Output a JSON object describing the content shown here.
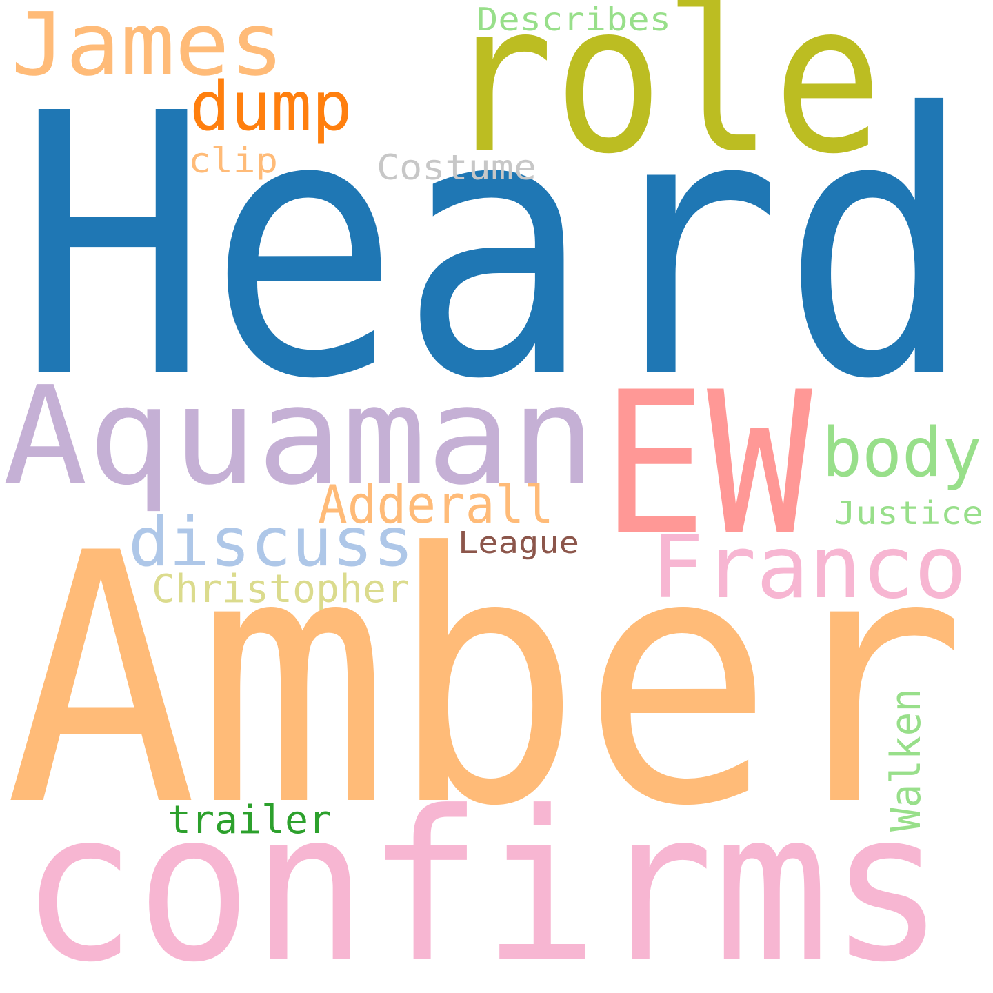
{
  "words": [
    {
      "text": "Heard",
      "color": "#1f77b4"
    },
    {
      "text": "Amber",
      "color": "#ffbb78"
    },
    {
      "text": "confirms",
      "color": "#f7b6d2"
    },
    {
      "text": "role",
      "color": "#bcbd22"
    },
    {
      "text": "Aquaman",
      "color": "#c5b0d5"
    },
    {
      "text": "EW",
      "color": "#ff9896"
    },
    {
      "text": "James",
      "color": "#ffbb78"
    },
    {
      "text": "Franco",
      "color": "#f7b6d2"
    },
    {
      "text": "discuss",
      "color": "#aec7e8"
    },
    {
      "text": "body",
      "color": "#98df8a"
    },
    {
      "text": "dump",
      "color": "#ff7f0e"
    },
    {
      "text": "Adderall",
      "color": "#ffbb78"
    },
    {
      "text": "Christopher",
      "color": "#dbdb8d"
    },
    {
      "text": "Walken",
      "color": "#98df8a"
    },
    {
      "text": "trailer",
      "color": "#2ca02c"
    },
    {
      "text": "Costume",
      "color": "#c7c7c7"
    },
    {
      "text": "Describes",
      "color": "#98df8a"
    },
    {
      "text": "Justice",
      "color": "#98df8a"
    },
    {
      "text": "League",
      "color": "#8c564b"
    },
    {
      "text": "clip",
      "color": "#ffbb78"
    }
  ]
}
